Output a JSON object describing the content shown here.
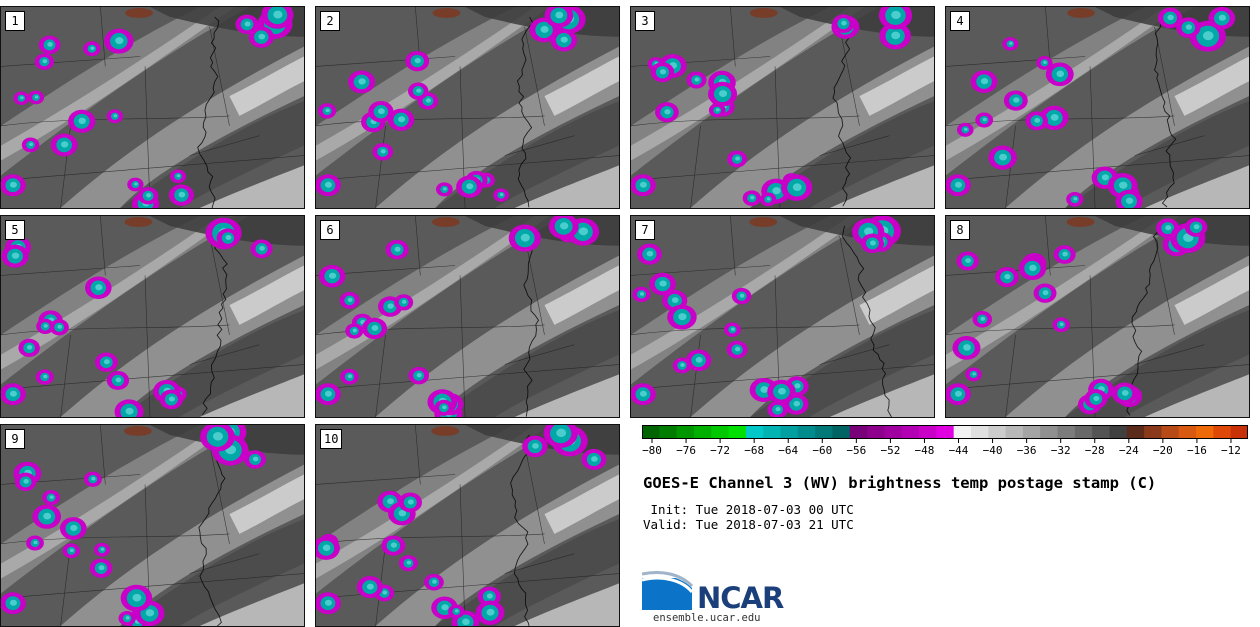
{
  "panels": [
    "1",
    "2",
    "3",
    "4",
    "5",
    "6",
    "7",
    "8",
    "9",
    "10"
  ],
  "colorbar": {
    "tick_labels": [
      "−80",
      "−76",
      "−72",
      "−68",
      "−64",
      "−60",
      "−56",
      "−52",
      "−48",
      "−44",
      "−40",
      "−36",
      "−32",
      "−28",
      "−24",
      "−20",
      "−16",
      "−12"
    ],
    "tick_values": [
      -80,
      -76,
      -72,
      -68,
      -64,
      -60,
      -56,
      -52,
      -48,
      -44,
      -40,
      -36,
      -32,
      -28,
      -24,
      -20,
      -16,
      -12
    ],
    "min": -80,
    "max": -10,
    "colors": [
      "#006400",
      "#007c00",
      "#009600",
      "#00b000",
      "#00c800",
      "#00e000",
      "#00c8c8",
      "#00b4b4",
      "#00a0a0",
      "#008c8c",
      "#007878",
      "#006464",
      "#780078",
      "#8c008c",
      "#a000a0",
      "#b400b4",
      "#c800c8",
      "#e000e0",
      "#f2f2f2",
      "#e0e0e0",
      "#cccccc",
      "#b8b8b8",
      "#a4a4a4",
      "#909090",
      "#7c7c7c",
      "#686868",
      "#545454",
      "#404040",
      "#5a2a1a",
      "#8a3a1a",
      "#b84a18",
      "#d85a10",
      "#ee6a08",
      "#e04808",
      "#c83008"
    ]
  },
  "title": "GOES-E Channel 3 (WV) brightness temp postage stamp (C)",
  "init_line": " Init: Tue 2018-07-03 00 UTC",
  "valid_line": "Valid: Tue 2018-07-03 21 UTC",
  "logo_text": "NCAR",
  "site": "ensemble.ucar.edu"
}
